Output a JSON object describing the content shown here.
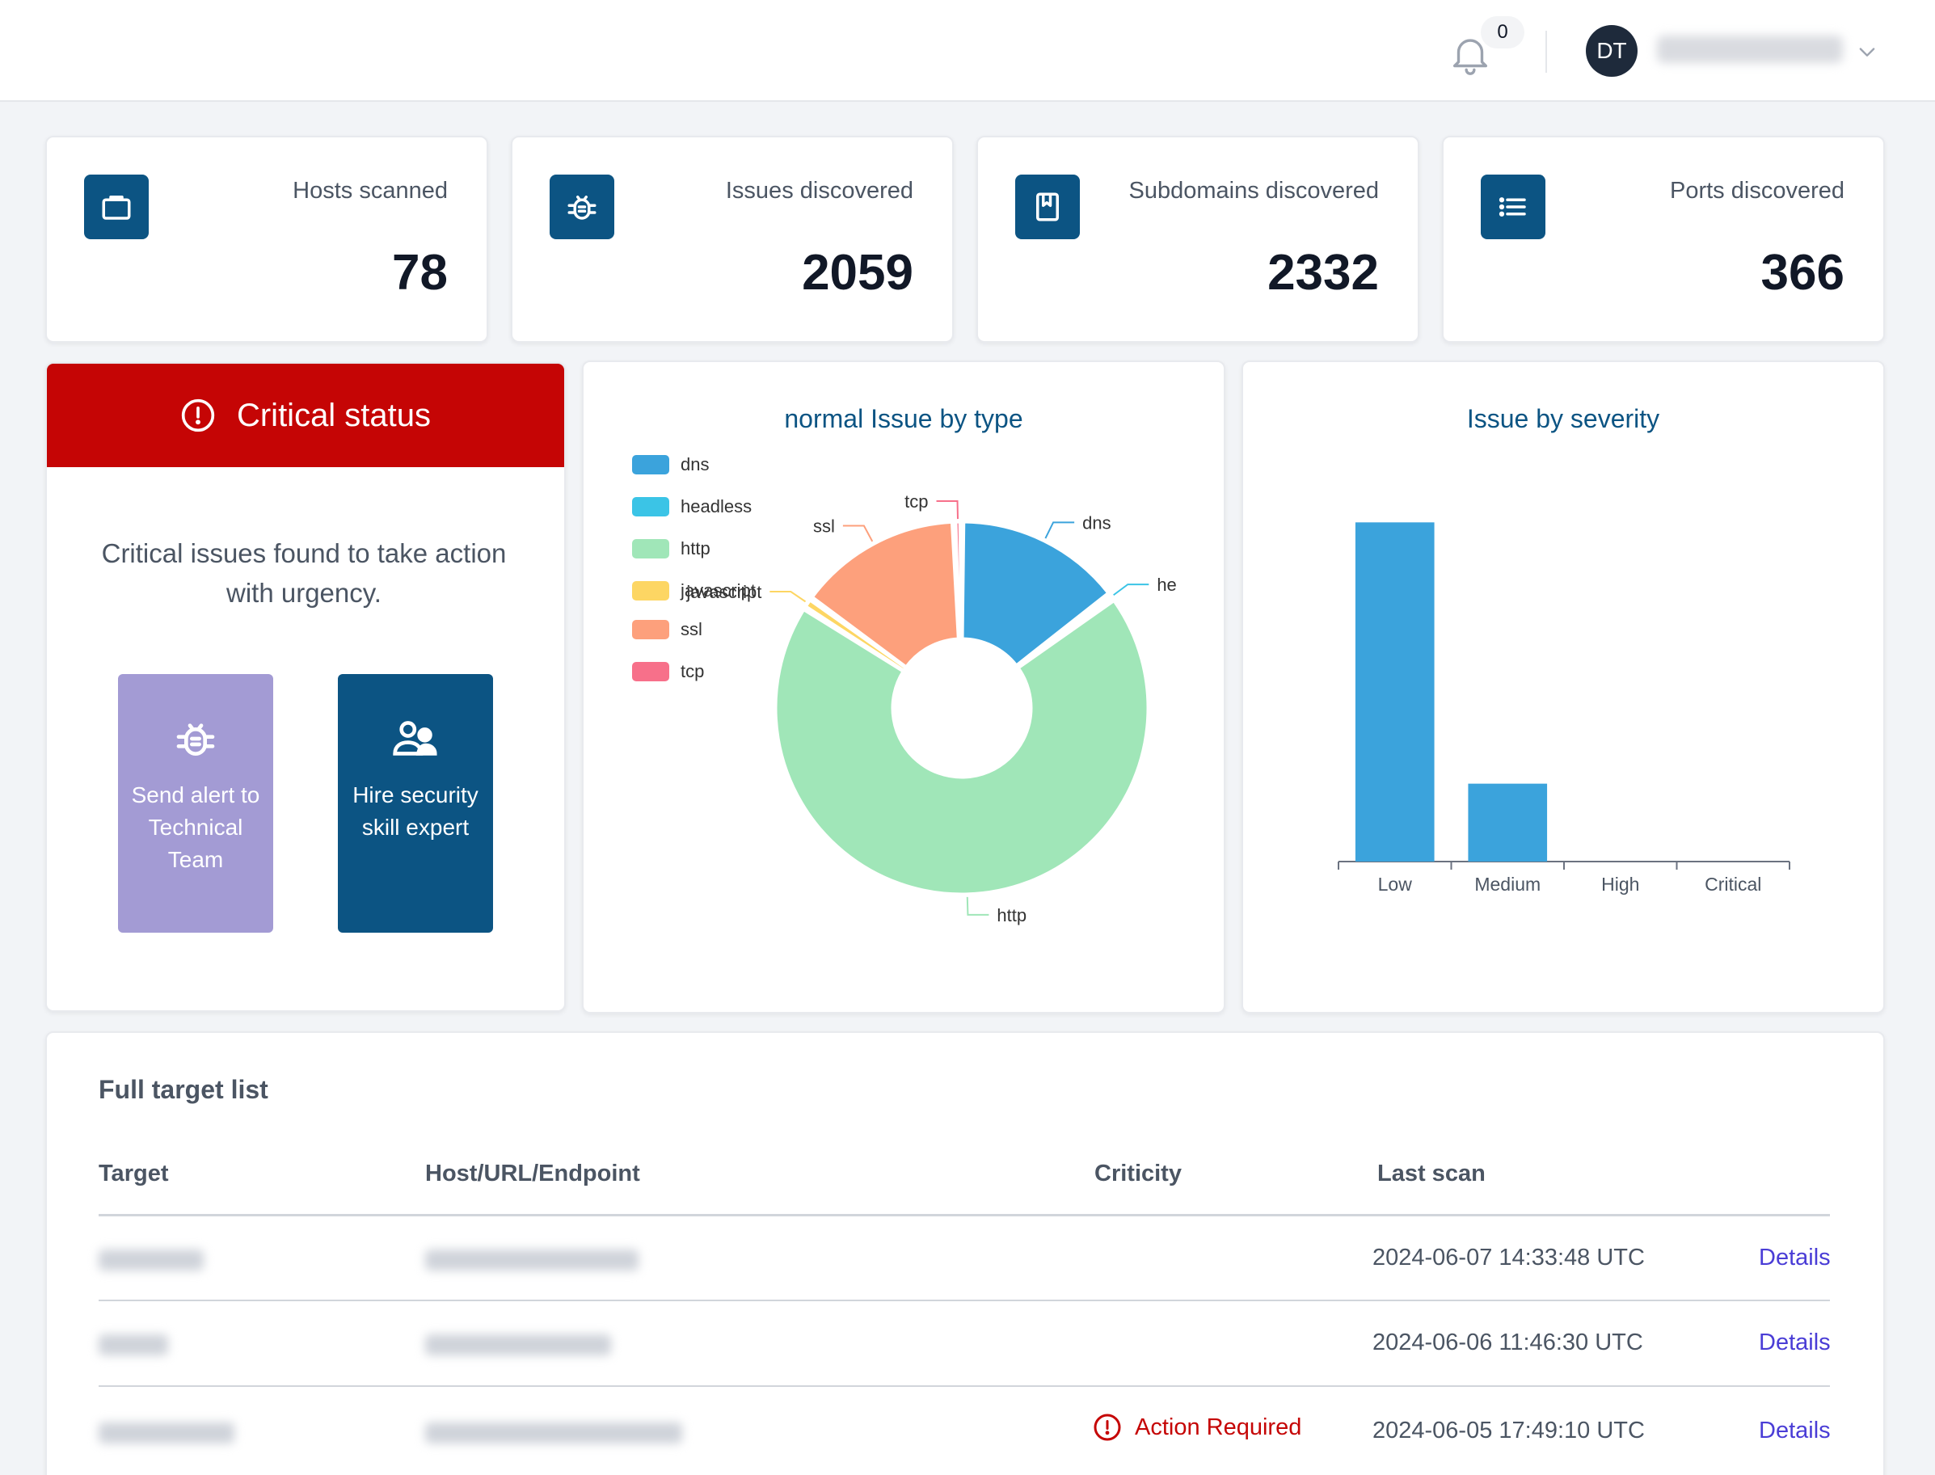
{
  "header": {
    "notification_count": "0",
    "user_initials": "DT"
  },
  "stats": [
    {
      "label": "Hosts scanned",
      "value": "78",
      "icon": "briefcase-icon"
    },
    {
      "label": "Issues discovered",
      "value": "2059",
      "icon": "bug-icon"
    },
    {
      "label": "Subdomains discovered",
      "value": "2332",
      "icon": "book-icon"
    },
    {
      "label": "Ports discovered",
      "value": "366",
      "icon": "list-icon"
    }
  ],
  "critical": {
    "title": "Critical status",
    "message": "Critical issues found to take action with urgency.",
    "alert_button": "Send alert to Technical Team",
    "hire_button": "Hire security skill expert"
  },
  "colors": {
    "primary": "#0c5483",
    "critical": "#c50505",
    "alert_button": "#a39bd4",
    "link": "#4a3dd6"
  },
  "chart_data": [
    {
      "type": "pie",
      "title": "normal Issue by type",
      "legend_position": "top-left",
      "slices": [
        {
          "label": "dns",
          "value": 300,
          "color": "#3ba3dc"
        },
        {
          "label": "headless",
          "value": 10,
          "color": "#3bc4e6"
        },
        {
          "label": "http",
          "value": 1420,
          "color": "#a0e6b8"
        },
        {
          "label": "javascript",
          "value": 20,
          "color": "#fdd663"
        },
        {
          "label": "ssl",
          "value": 295,
          "color": "#fda07c"
        },
        {
          "label": "tcp",
          "value": 14,
          "color": "#f7708a"
        }
      ],
      "outer_labels": [
        "dns",
        "he",
        "http",
        "javascript",
        "ssl",
        "tcp"
      ]
    },
    {
      "type": "bar",
      "title": "Issue by severity",
      "categories": [
        "Low",
        "Medium",
        "High",
        "Critical"
      ],
      "values": [
        1720,
        395,
        0,
        0
      ],
      "ylim": [
        0,
        2000
      ],
      "color": "#3ba3dc"
    }
  ],
  "table": {
    "title": "Full target list",
    "columns": [
      "Target",
      "Host/URL/Endpoint",
      "Criticity",
      "Last scan"
    ],
    "rows": [
      {
        "criticity": "",
        "last_scan": "2024-06-07 14:33:48 UTC",
        "action": "Details"
      },
      {
        "criticity": "",
        "last_scan": "2024-06-06 11:46:30 UTC",
        "action": "Details"
      },
      {
        "criticity": "Action Required",
        "last_scan": "2024-06-05 17:49:10 UTC",
        "action": "Details"
      }
    ]
  }
}
